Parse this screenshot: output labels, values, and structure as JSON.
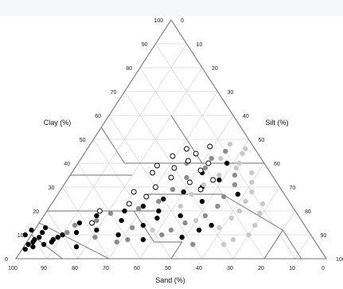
{
  "chart_data": {
    "type": "ternary-scatter",
    "title": "",
    "axes": {
      "left": {
        "label": "Clay (%)",
        "ticks": [
          "100",
          "90",
          "80",
          "70",
          "60",
          "50",
          "40",
          "30",
          "20",
          "10",
          "0"
        ]
      },
      "right": {
        "label": "Silt (%)",
        "ticks": [
          "0",
          "10",
          "20",
          "30",
          "40",
          "50",
          "60",
          "70",
          "80",
          "90",
          "100"
        ]
      },
      "bottom": {
        "label": "Sand (%)",
        "ticks": [
          "100",
          "90",
          "80",
          "70",
          "60",
          "50",
          "40",
          "30",
          "20",
          "10",
          "0"
        ]
      }
    },
    "grid": true,
    "series": [
      {
        "color": "#000000",
        "filled": true,
        "points": [
          {
            "clay": 8,
            "sand": 90
          },
          {
            "clay": 10,
            "sand": 92
          },
          {
            "clay": 6,
            "sand": 93
          },
          {
            "clay": 9,
            "sand": 88
          },
          {
            "clay": 12,
            "sand": 89
          },
          {
            "clay": 5,
            "sand": 92
          },
          {
            "clay": 7,
            "sand": 85
          },
          {
            "clay": 11,
            "sand": 86
          },
          {
            "clay": 4,
            "sand": 95
          },
          {
            "clay": 8,
            "sand": 84
          },
          {
            "clay": 13,
            "sand": 84
          },
          {
            "clay": 10,
            "sand": 80
          },
          {
            "clay": 6,
            "sand": 88
          },
          {
            "clay": 9,
            "sand": 82
          },
          {
            "clay": 7,
            "sand": 91
          },
          {
            "clay": 15,
            "sand": 72
          },
          {
            "clay": 18,
            "sand": 65
          },
          {
            "clay": 12,
            "sand": 68
          },
          {
            "clay": 16,
            "sand": 58
          },
          {
            "clay": 20,
            "sand": 55
          },
          {
            "clay": 10,
            "sand": 62
          },
          {
            "clay": 14,
            "sand": 52
          },
          {
            "clay": 22,
            "sand": 48
          },
          {
            "clay": 25,
            "sand": 40
          },
          {
            "clay": 18,
            "sand": 38
          },
          {
            "clay": 28,
            "sand": 32
          },
          {
            "clay": 30,
            "sand": 25
          },
          {
            "clay": 24,
            "sand": 28
          },
          {
            "clay": 9,
            "sand": 42
          },
          {
            "clay": 12,
            "sand": 35
          },
          {
            "clay": 33,
            "sand": 18
          },
          {
            "clay": 36,
            "sand": 22
          },
          {
            "clay": 40,
            "sand": 12
          },
          {
            "clay": 27,
            "sand": 15
          },
          {
            "clay": 14,
            "sand": 30
          },
          {
            "clay": 20,
            "sand": 44
          },
          {
            "clay": 8,
            "sand": 55
          },
          {
            "clay": 11,
            "sand": 75
          },
          {
            "clay": 5,
            "sand": 78
          },
          {
            "clay": 17,
            "sand": 46
          }
        ]
      },
      {
        "color": "#8c8c8c",
        "filled": true,
        "points": [
          {
            "clay": 11,
            "sand": 78
          },
          {
            "clay": 14,
            "sand": 74
          },
          {
            "clay": 9,
            "sand": 70
          },
          {
            "clay": 16,
            "sand": 66
          },
          {
            "clay": 7,
            "sand": 64
          },
          {
            "clay": 19,
            "sand": 60
          },
          {
            "clay": 13,
            "sand": 56
          },
          {
            "clay": 21,
            "sand": 50
          },
          {
            "clay": 10,
            "sand": 48
          },
          {
            "clay": 24,
            "sand": 42
          },
          {
            "clay": 29,
            "sand": 35
          },
          {
            "clay": 34,
            "sand": 28
          },
          {
            "clay": 38,
            "sand": 20
          },
          {
            "clay": 42,
            "sand": 16
          },
          {
            "clay": 45,
            "sand": 10
          },
          {
            "clay": 31,
            "sand": 14
          },
          {
            "clay": 26,
            "sand": 20
          },
          {
            "clay": 22,
            "sand": 24
          },
          {
            "clay": 18,
            "sand": 30
          },
          {
            "clay": 35,
            "sand": 12
          },
          {
            "clay": 6,
            "sand": 40
          },
          {
            "clay": 12,
            "sand": 44
          },
          {
            "clay": 15,
            "sand": 38
          },
          {
            "clay": 40,
            "sand": 25
          },
          {
            "clay": 8,
            "sand": 60
          }
        ]
      },
      {
        "color": "#c8c8c8",
        "filled": true,
        "points": [
          {
            "clay": 13,
            "sand": 28
          },
          {
            "clay": 17,
            "sand": 22
          },
          {
            "clay": 20,
            "sand": 18
          },
          {
            "clay": 24,
            "sand": 14
          },
          {
            "clay": 28,
            "sand": 10
          },
          {
            "clay": 32,
            "sand": 8
          },
          {
            "clay": 36,
            "sand": 6
          },
          {
            "clay": 40,
            "sand": 8
          },
          {
            "clay": 44,
            "sand": 5
          },
          {
            "clay": 48,
            "sand": 7
          },
          {
            "clay": 10,
            "sand": 20
          },
          {
            "clay": 14,
            "sand": 16
          },
          {
            "clay": 19,
            "sand": 12
          },
          {
            "clay": 23,
            "sand": 9
          },
          {
            "clay": 8,
            "sand": 26
          },
          {
            "clay": 27,
            "sand": 30
          },
          {
            "clay": 31,
            "sand": 24
          },
          {
            "clay": 35,
            "sand": 17
          },
          {
            "clay": 16,
            "sand": 34
          },
          {
            "clay": 42,
            "sand": 13
          },
          {
            "clay": 12,
            "sand": 50
          },
          {
            "clay": 6,
            "sand": 30
          },
          {
            "clay": 38,
            "sand": 10
          },
          {
            "clay": 46,
            "sand": 3
          },
          {
            "clay": 22,
            "sand": 36
          }
        ]
      },
      {
        "color": "#000000",
        "filled": false,
        "points": [
          {
            "clay": 30,
            "sand": 40
          },
          {
            "clay": 34,
            "sand": 33
          },
          {
            "clay": 38,
            "sand": 30
          },
          {
            "clay": 41,
            "sand": 24
          },
          {
            "clay": 44,
            "sand": 20
          },
          {
            "clay": 26,
            "sand": 45
          },
          {
            "clay": 36,
            "sand": 38
          },
          {
            "clay": 32,
            "sand": 28
          },
          {
            "clay": 40,
            "sand": 18
          },
          {
            "clay": 47,
            "sand": 14
          },
          {
            "clay": 23,
            "sand": 52
          },
          {
            "clay": 28,
            "sand": 48
          },
          {
            "clay": 20,
            "sand": 63
          },
          {
            "clay": 43,
            "sand": 28
          },
          {
            "clay": 37,
            "sand": 22
          },
          {
            "clay": 33,
            "sand": 20
          },
          {
            "clay": 46,
            "sand": 22
          },
          {
            "clay": 39,
            "sand": 35
          },
          {
            "clay": 15,
            "sand": 68
          },
          {
            "clay": 29,
            "sand": 26
          }
        ]
      }
    ]
  }
}
